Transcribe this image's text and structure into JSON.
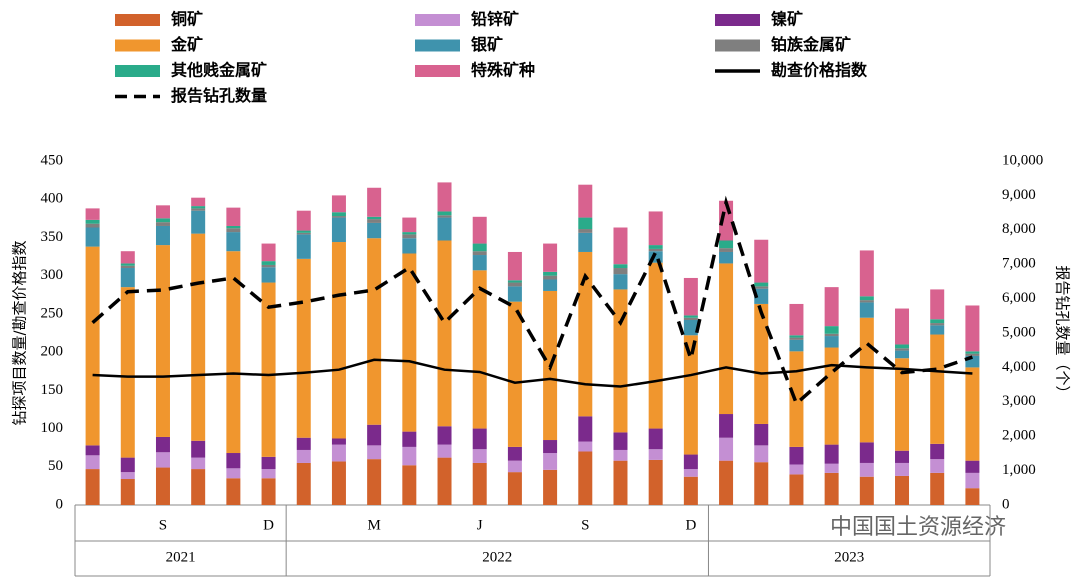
{
  "chart_data": {
    "type": "bar",
    "stacked": true,
    "y_label": "钻探项目数量/勘查价格指数",
    "y2_label": "报告钻孔数量（个）",
    "watermark": "中国国土资源经济",
    "categories": [
      null,
      null,
      "S",
      null,
      null,
      "D",
      null,
      null,
      "M",
      null,
      null,
      "J",
      null,
      null,
      "S",
      null,
      null,
      "D",
      null,
      null,
      null,
      null,
      null,
      null,
      null,
      null
    ],
    "years": [
      "2021",
      "2022",
      "2023"
    ],
    "ylim": [
      0,
      450
    ],
    "yticks": [
      0,
      50,
      100,
      150,
      200,
      250,
      300,
      350,
      400,
      450
    ],
    "y2lim": [
      0,
      10000
    ],
    "y2ticks": [
      0,
      {
        "value": 1000,
        "label": "1,000"
      },
      {
        "value": 2000,
        "label": "2,000"
      },
      {
        "value": 3000,
        "label": "3,000"
      },
      {
        "value": 4000,
        "label": "4,000"
      },
      {
        "value": 5000,
        "label": "5,000"
      },
      {
        "value": 6000,
        "label": "6,000"
      },
      {
        "value": 7000,
        "label": "7,000"
      },
      {
        "value": 8000,
        "label": "8,000"
      },
      {
        "value": 9000,
        "label": "9,000"
      },
      {
        "value": 10000,
        "label": "10,000"
      }
    ],
    "series": [
      {
        "name": "铜矿",
        "color": "#d2622b",
        "values": [
          47,
          34,
          49,
          47,
          35,
          35,
          55,
          57,
          60,
          52,
          62,
          55,
          43,
          46,
          70,
          58,
          59,
          37,
          58,
          56,
          40,
          42,
          37,
          38,
          42,
          22
        ]
      },
      {
        "name": "铅锌矿",
        "color": "#c48fd3",
        "values": [
          18,
          9,
          20,
          15,
          13,
          12,
          17,
          22,
          18,
          24,
          17,
          18,
          15,
          22,
          13,
          14,
          14,
          10,
          30,
          22,
          13,
          12,
          18,
          17,
          18,
          20
        ]
      },
      {
        "name": "镍矿",
        "color": "#7b2a8c",
        "values": [
          13,
          19,
          20,
          22,
          20,
          16,
          16,
          8,
          27,
          20,
          24,
          27,
          18,
          17,
          33,
          23,
          27,
          19,
          31,
          28,
          23,
          25,
          27,
          16,
          20,
          16
        ]
      },
      {
        "name": "金矿",
        "color": "#f0962e",
        "values": [
          260,
          223,
          251,
          271,
          264,
          228,
          234,
          257,
          244,
          233,
          243,
          207,
          190,
          195,
          215,
          187,
          217,
          156,
          197,
          157,
          125,
          127,
          163,
          121,
          143,
          122
        ]
      },
      {
        "name": "银矿",
        "color": "#3f93ad",
        "values": [
          25,
          25,
          25,
          30,
          25,
          20,
          32,
          32,
          20,
          20,
          30,
          20,
          20,
          15,
          25,
          20,
          15,
          20,
          15,
          20,
          15,
          15,
          20,
          10,
          12,
          15
        ]
      },
      {
        "name": "铂族金属矿",
        "color": "#7f7f7f",
        "values": [
          5,
          3,
          5,
          3,
          5,
          3,
          2,
          2,
          5,
          5,
          3,
          5,
          5,
          5,
          5,
          8,
          3,
          3,
          5,
          3,
          3,
          3,
          3,
          3,
          3,
          3
        ]
      },
      {
        "name": "其他贱金属矿",
        "color": "#2aab8a",
        "values": [
          5,
          3,
          5,
          3,
          3,
          5,
          3,
          5,
          3,
          3,
          5,
          10,
          3,
          5,
          15,
          5,
          5,
          3,
          10,
          5,
          3,
          10,
          5,
          5,
          5,
          3
        ]
      },
      {
        "name": "特殊矿种",
        "color": "#d8628f",
        "values": [
          15,
          16,
          17,
          11,
          24,
          23,
          26,
          22,
          38,
          19,
          38,
          35,
          37,
          37,
          43,
          48,
          44,
          49,
          52,
          56,
          41,
          51,
          60,
          47,
          39,
          60
        ]
      },
      {
        "name": "勘查价格指数",
        "type": "line",
        "color": "#000000",
        "values": [
          170,
          168,
          168,
          170,
          172,
          170,
          173,
          177,
          190,
          188,
          177,
          174,
          160,
          165,
          158,
          155,
          162,
          170,
          180,
          172,
          175,
          183,
          180,
          178,
          175,
          172
        ]
      },
      {
        "name": "报告钻孔数量",
        "type": "line",
        "axis": "y2",
        "dashed": true,
        "color": "#000000",
        "values": [
          5300,
          6200,
          6250,
          6450,
          6600,
          5750,
          5900,
          6100,
          6250,
          6900,
          5300,
          6300,
          5750,
          4000,
          6650,
          5300,
          7350,
          4250,
          8800,
          5600,
          2950,
          3850,
          4700,
          3850,
          3950,
          4300
        ]
      }
    ]
  }
}
